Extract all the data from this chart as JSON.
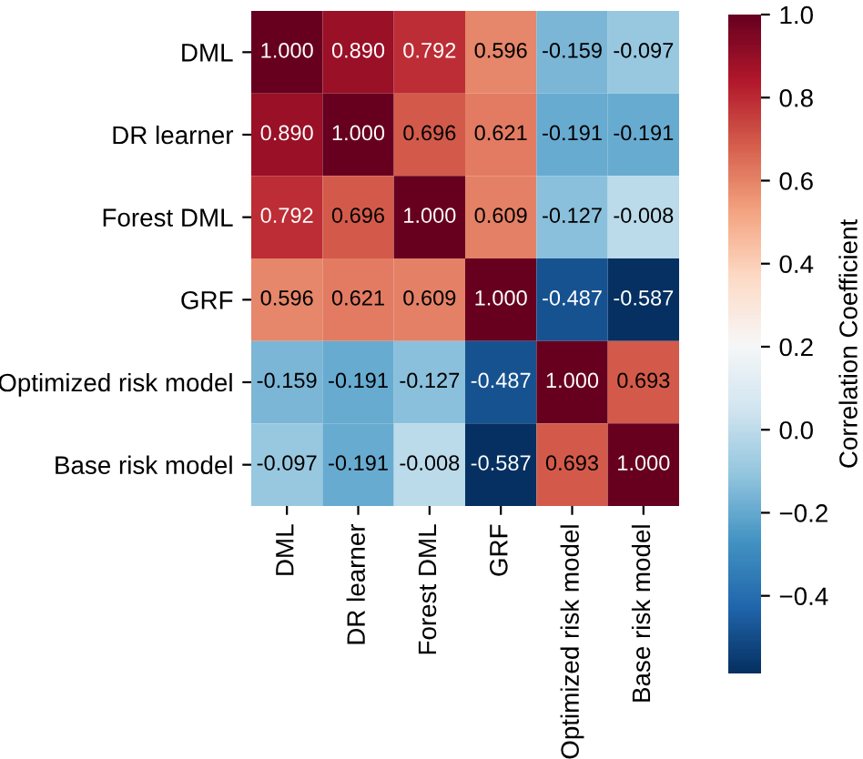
{
  "chart_data": {
    "type": "heatmap",
    "clabel": "Correlation Coefficient",
    "categories": [
      "DML",
      "DR learner",
      "Forest DML",
      "GRF",
      "Optimized risk model",
      "Base risk model"
    ],
    "y_categories": [
      "DML",
      "DR learner",
      "Forest DML",
      "GRF",
      "Optimized risk model",
      "Base risk model"
    ],
    "cells": [
      [
        1.0,
        0.89,
        0.792,
        0.596,
        -0.159,
        -0.097
      ],
      [
        0.89,
        1.0,
        0.696,
        0.621,
        -0.191,
        -0.191
      ],
      [
        0.792,
        0.696,
        1.0,
        0.609,
        -0.127,
        -0.008
      ],
      [
        0.596,
        0.621,
        0.609,
        1.0,
        -0.487,
        -0.587
      ],
      [
        -0.159,
        -0.191,
        -0.127,
        -0.487,
        1.0,
        0.693
      ],
      [
        -0.097,
        -0.191,
        -0.008,
        -0.587,
        0.693,
        1.0
      ]
    ],
    "cell_labels": [
      [
        "1.000",
        "0.890",
        "0.792",
        "0.596",
        "-0.159",
        "-0.097"
      ],
      [
        "0.890",
        "1.000",
        "0.696",
        "0.621",
        "-0.191",
        "-0.191"
      ],
      [
        "0.792",
        "0.696",
        "1.000",
        "0.609",
        "-0.127",
        "-0.008"
      ],
      [
        "0.596",
        "0.621",
        "0.609",
        "1.000",
        "-0.487",
        "-0.587"
      ],
      [
        "-0.159",
        "-0.191",
        "-0.127",
        "-0.487",
        "1.000",
        "0.693"
      ],
      [
        "-0.097",
        "-0.191",
        "-0.008",
        "-0.587",
        "0.693",
        "1.000"
      ]
    ],
    "clim": [
      -0.587,
      1.0
    ],
    "cticks": [
      {
        "value": -0.4,
        "label": "−0.4"
      },
      {
        "value": -0.2,
        "label": "−0.2"
      },
      {
        "value": 0,
        "label": "0.0"
      },
      0.2,
      0.4,
      0.6,
      0.8,
      {
        "value": 1,
        "label": "1.0"
      }
    ]
  }
}
